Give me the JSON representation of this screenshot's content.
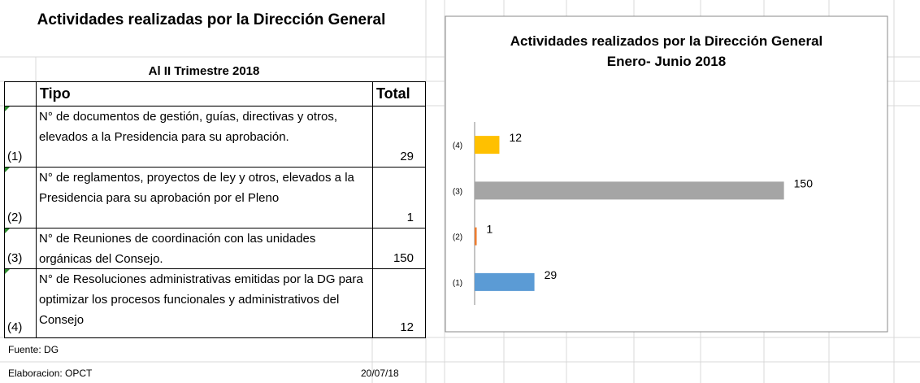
{
  "table": {
    "title": "Actividades realizadas por la Dirección General",
    "subtitle": "Al II Trimestre 2018",
    "headers": [
      "Tipo",
      "Total"
    ],
    "rows": [
      {
        "id": "(1)",
        "tipo": "N° de documentos de gestión, guías, directivas y otros, elevados a la Presidencia para su aprobación.",
        "total": 29
      },
      {
        "id": "(2)",
        "tipo": "N° de reglamentos, proyectos de ley y otros, elevados a la Presidencia para su aprobación por el Pleno",
        "total": 1
      },
      {
        "id": "(3)",
        "tipo": "N° de Reuniones de coordinación con las unidades orgánicas del Consejo.",
        "total": 150
      },
      {
        "id": "(4)",
        "tipo": "N° de Resoluciones administrativas emitidas por la DG para optimizar los procesos funcionales y administrativos del Consejo",
        "total": 12
      }
    ],
    "source": "Fuente: DG",
    "prepared_by": "Elaboracion: OPCT",
    "date": "20/07/18"
  },
  "chart_data": {
    "type": "bar",
    "orientation": "horizontal",
    "title": "Actividades realizados por la Dirección General",
    "subtitle": "Enero- Junio 2018",
    "categories": [
      "(1)",
      "(2)",
      "(3)",
      "(4)"
    ],
    "values": [
      29,
      1,
      150,
      12
    ],
    "colors": [
      "#5b9bd5",
      "#ed7d31",
      "#a5a5a5",
      "#ffc000"
    ],
    "xlim": [
      0,
      160
    ]
  }
}
